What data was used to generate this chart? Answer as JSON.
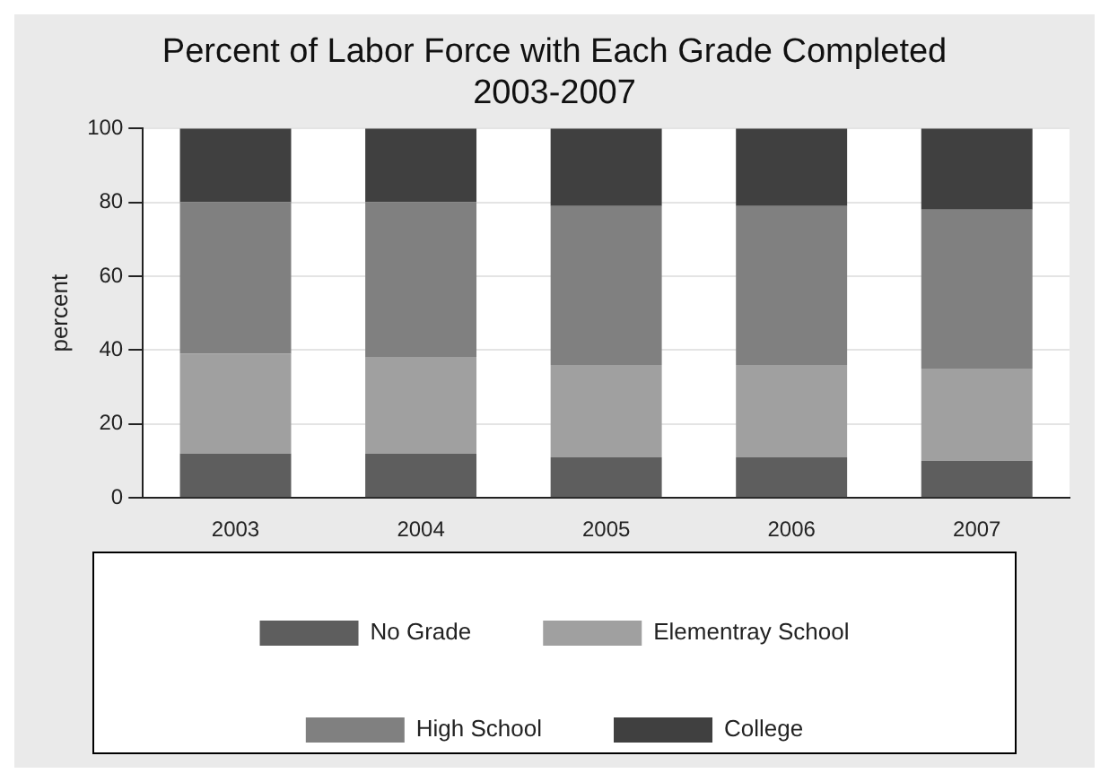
{
  "chart_data": {
    "type": "bar",
    "title": "Percent of Labor Force with Each Grade Completed",
    "subtitle": "2003-2007",
    "ylabel": "percent",
    "categories": [
      "2003",
      "2004",
      "2005",
      "2006",
      "2007"
    ],
    "series": [
      {
        "name": "No Grade",
        "color": "#5e5e5e",
        "values": [
          12,
          12,
          11,
          11,
          10
        ]
      },
      {
        "name": "Elementray School",
        "color": "#a0a0a0",
        "values": [
          27,
          26,
          25,
          25,
          25
        ]
      },
      {
        "name": "High School",
        "color": "#808080",
        "values": [
          41,
          42,
          43,
          43,
          43
        ]
      },
      {
        "name": "College",
        "color": "#404040",
        "values": [
          20,
          20,
          21,
          21,
          22
        ]
      }
    ],
    "stacked": true,
    "ylim": [
      0,
      100
    ],
    "yticks": [
      0,
      20,
      40,
      60,
      80,
      100
    ],
    "grid": "y",
    "legend": "bottom"
  }
}
